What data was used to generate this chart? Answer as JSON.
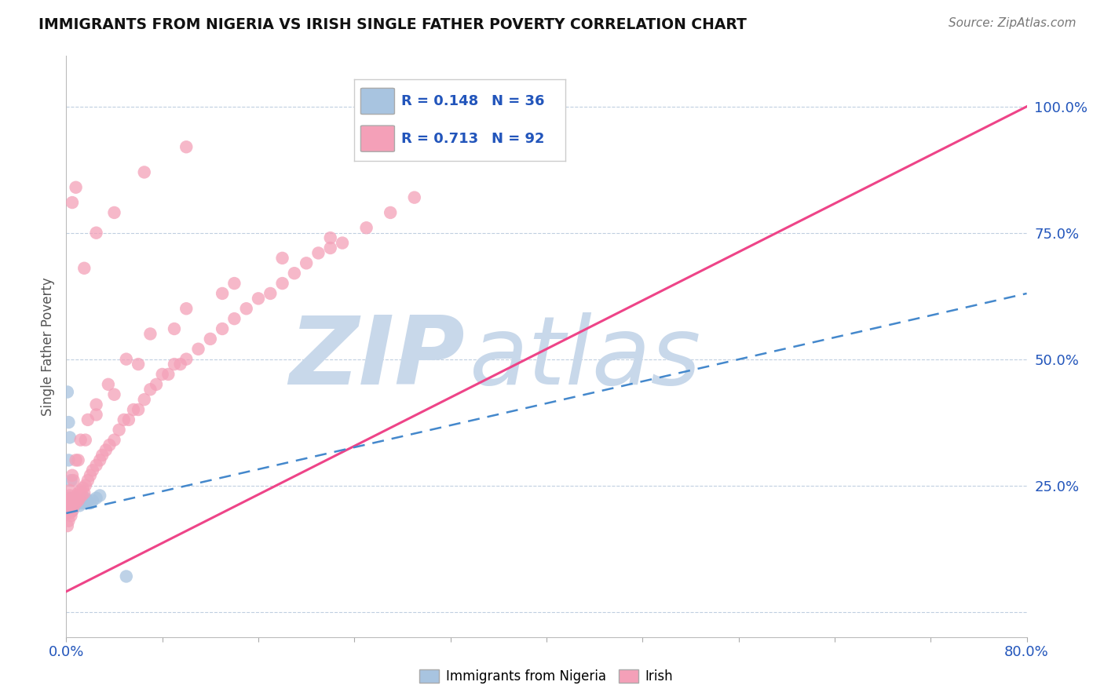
{
  "title": "IMMIGRANTS FROM NIGERIA VS IRISH SINGLE FATHER POVERTY CORRELATION CHART",
  "source": "Source: ZipAtlas.com",
  "ylabel": "Single Father Poverty",
  "xlim": [
    0.0,
    0.8
  ],
  "ylim": [
    -0.05,
    1.1
  ],
  "ytick_positions": [
    0.0,
    0.25,
    0.5,
    0.75,
    1.0
  ],
  "ytick_labels": [
    "",
    "25.0%",
    "50.0%",
    "75.0%",
    "100.0%"
  ],
  "nigeria_R": 0.148,
  "nigeria_N": 36,
  "irish_R": 0.713,
  "irish_N": 92,
  "nigeria_color": "#a8c4e0",
  "irish_color": "#f4a0b8",
  "nigeria_line_color": "#4488cc",
  "irish_line_color": "#ee4488",
  "background_color": "#ffffff",
  "watermark_color": "#c8d8ea",
  "seed": 12345,
  "nigeria_x_raw": [
    0.0008,
    0.001,
    0.0012,
    0.0015,
    0.0018,
    0.002,
    0.0022,
    0.0025,
    0.003,
    0.003,
    0.003,
    0.004,
    0.004,
    0.005,
    0.005,
    0.006,
    0.007,
    0.008,
    0.009,
    0.01,
    0.011,
    0.012,
    0.013,
    0.015,
    0.016,
    0.018,
    0.02,
    0.022,
    0.025,
    0.028,
    0.001,
    0.002,
    0.003,
    0.05,
    0.002,
    0.004
  ],
  "nigeria_y_raw": [
    0.195,
    0.2,
    0.21,
    0.22,
    0.2,
    0.215,
    0.225,
    0.21,
    0.22,
    0.215,
    0.205,
    0.21,
    0.22,
    0.2,
    0.215,
    0.22,
    0.21,
    0.225,
    0.215,
    0.22,
    0.21,
    0.215,
    0.22,
    0.215,
    0.225,
    0.22,
    0.215,
    0.22,
    0.225,
    0.23,
    0.435,
    0.375,
    0.345,
    0.07,
    0.3,
    0.26
  ],
  "irish_x_raw": [
    0.001,
    0.001,
    0.002,
    0.002,
    0.003,
    0.003,
    0.004,
    0.004,
    0.005,
    0.005,
    0.006,
    0.007,
    0.008,
    0.009,
    0.01,
    0.01,
    0.011,
    0.012,
    0.013,
    0.014,
    0.015,
    0.016,
    0.018,
    0.02,
    0.022,
    0.025,
    0.028,
    0.03,
    0.033,
    0.036,
    0.04,
    0.044,
    0.048,
    0.052,
    0.056,
    0.06,
    0.065,
    0.07,
    0.075,
    0.08,
    0.085,
    0.09,
    0.095,
    0.1,
    0.11,
    0.12,
    0.13,
    0.14,
    0.15,
    0.16,
    0.17,
    0.18,
    0.19,
    0.2,
    0.21,
    0.22,
    0.23,
    0.25,
    0.27,
    0.29,
    0.002,
    0.003,
    0.005,
    0.008,
    0.012,
    0.018,
    0.025,
    0.035,
    0.05,
    0.07,
    0.1,
    0.14,
    0.18,
    0.22,
    0.003,
    0.006,
    0.01,
    0.016,
    0.025,
    0.04,
    0.06,
    0.09,
    0.13,
    0.005,
    0.008,
    0.015,
    0.025,
    0.04,
    0.065,
    0.1,
    0.29,
    0.4
  ],
  "irish_y_raw": [
    0.17,
    0.2,
    0.18,
    0.215,
    0.195,
    0.22,
    0.19,
    0.215,
    0.2,
    0.225,
    0.21,
    0.22,
    0.215,
    0.23,
    0.22,
    0.235,
    0.225,
    0.24,
    0.23,
    0.245,
    0.235,
    0.25,
    0.26,
    0.27,
    0.28,
    0.29,
    0.3,
    0.31,
    0.32,
    0.33,
    0.34,
    0.36,
    0.38,
    0.38,
    0.4,
    0.4,
    0.42,
    0.44,
    0.45,
    0.47,
    0.47,
    0.49,
    0.49,
    0.5,
    0.52,
    0.54,
    0.56,
    0.58,
    0.6,
    0.62,
    0.63,
    0.65,
    0.67,
    0.69,
    0.71,
    0.72,
    0.73,
    0.76,
    0.79,
    0.82,
    0.22,
    0.24,
    0.27,
    0.3,
    0.34,
    0.38,
    0.41,
    0.45,
    0.5,
    0.55,
    0.6,
    0.65,
    0.7,
    0.74,
    0.23,
    0.26,
    0.3,
    0.34,
    0.39,
    0.43,
    0.49,
    0.56,
    0.63,
    0.81,
    0.84,
    0.68,
    0.75,
    0.79,
    0.87,
    0.92,
    0.99,
    1.0
  ],
  "irish_line_x": [
    0.0,
    0.8
  ],
  "irish_line_y": [
    0.04,
    1.0
  ],
  "nigeria_line_x": [
    0.0,
    0.8
  ],
  "nigeria_line_y": [
    0.195,
    0.63
  ]
}
